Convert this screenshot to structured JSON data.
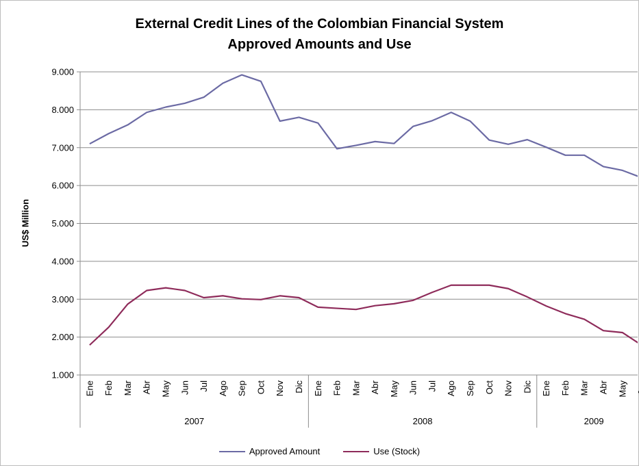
{
  "chart_data": {
    "type": "line",
    "title_lines": [
      "External Credit Lines of the Colombian Financial System",
      "Approved Amounts and Use"
    ],
    "ylabel": "US$ Million",
    "xlabel": "",
    "ylim": [
      1000,
      9000
    ],
    "yticks": [
      "9.000",
      "8.000",
      "7.000",
      "6.000",
      "5.000",
      "4.000",
      "3.000",
      "2.000",
      "1.000"
    ],
    "grid": "horizontal",
    "legend_position": "bottom",
    "months": [
      "Ene",
      "Feb",
      "Mar",
      "Abr",
      "May",
      "Jun",
      "Jul",
      "Ago",
      "Sep",
      "Oct",
      "Nov",
      "Dic",
      "Ene",
      "Feb",
      "Mar",
      "Abr",
      "May",
      "Jun",
      "Jul",
      "Ago",
      "Sep",
      "Oct",
      "Nov",
      "Dic",
      "Ene",
      "Feb",
      "Mar",
      "Abr",
      "May",
      "Jun"
    ],
    "years": [
      {
        "label": "2007",
        "months": 12
      },
      {
        "label": "2008",
        "months": 12
      },
      {
        "label": "2009",
        "months": 6
      }
    ],
    "series": [
      {
        "name": "Approved Amount",
        "color": "#6b6aa4",
        "values": [
          7100,
          7370,
          7600,
          7930,
          8070,
          8170,
          8330,
          8700,
          8920,
          8750,
          7700,
          7800,
          7650,
          6970,
          7060,
          7160,
          7110,
          7560,
          7710,
          7930,
          7700,
          7200,
          7090,
          7210,
          7010,
          6800,
          6800,
          6500,
          6400,
          6210
        ]
      },
      {
        "name": "Use (Stock)",
        "color": "#8e2b5a",
        "values": [
          1790,
          2260,
          2870,
          3230,
          3300,
          3230,
          3040,
          3090,
          3010,
          2990,
          3090,
          3040,
          2790,
          2760,
          2730,
          2830,
          2880,
          2970,
          3180,
          3370,
          3370,
          3370,
          3280,
          3060,
          2820,
          2620,
          2470,
          2170,
          2120,
          1790
        ]
      }
    ]
  }
}
